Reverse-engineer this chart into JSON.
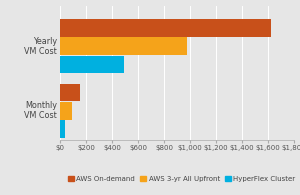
{
  "categories": [
    "Yearly\nVM Cost",
    "Monthly\nVM Cost"
  ],
  "series": {
    "AWS On-demand": [
      1620,
      150
    ],
    "AWS 3-yr All Upfront": [
      980,
      95
    ],
    "HyperFlex Cluster": [
      490,
      35
    ]
  },
  "colors": {
    "AWS On-demand": "#c8501a",
    "AWS 3-yr All Upfront": "#f5a31a",
    "HyperFlex Cluster": "#00b0e0"
  },
  "legend_labels": [
    "AWS On-demand",
    "AWS 3-yr All Upfront",
    "HyperFlex Cluster"
  ],
  "xlim": [
    0,
    1800
  ],
  "xticks": [
    0,
    200,
    400,
    600,
    800,
    1000,
    1200,
    1400,
    1600,
    1800
  ],
  "xticklabels": [
    "$0",
    "$200",
    "$400",
    "$600",
    "$800",
    "$1,000",
    "$1,200",
    "$1,400",
    "$1,600",
    "$1,800"
  ],
  "background_color": "#e6e6e6",
  "bar_height": 0.13,
  "tick_fontsize": 5.0,
  "label_fontsize": 5.8,
  "legend_fontsize": 5.0
}
